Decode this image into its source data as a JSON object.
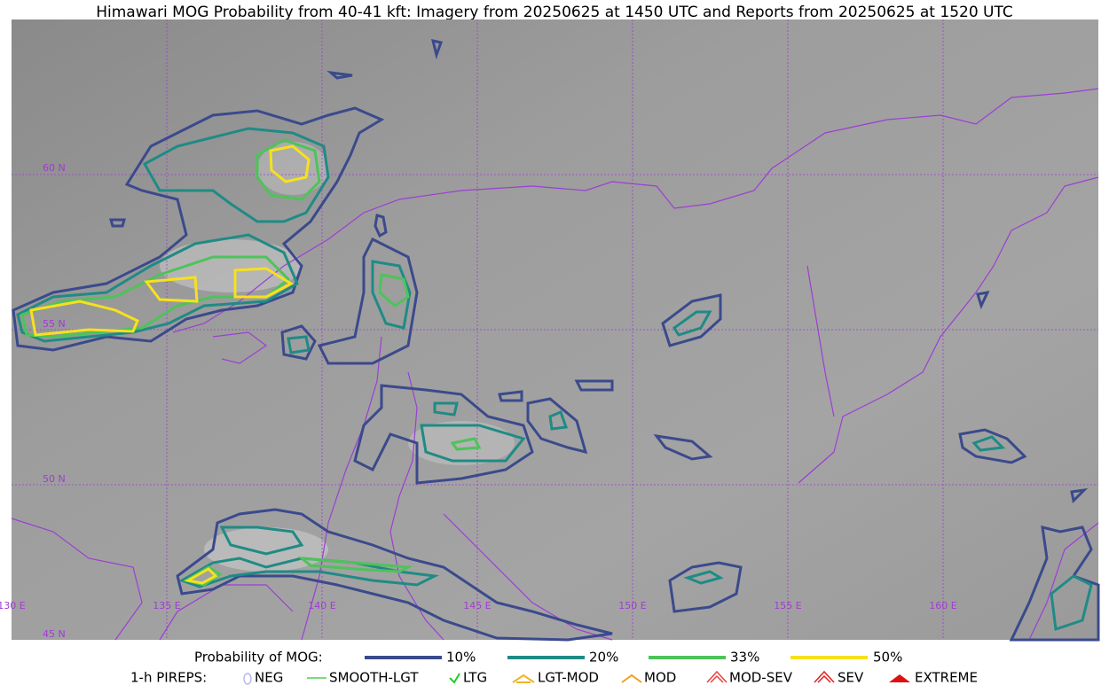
{
  "title": "Himawari MOG Probability from 40-41 kft: Imagery from 20250625 at 1450 UTC and Reports from 20250625 at 1520 UTC",
  "map": {
    "lat_labels": [
      "60 N",
      "55 N",
      "50 N",
      "45 N"
    ],
    "lon_labels": [
      "130 E",
      "135 E",
      "140 E",
      "145 E",
      "150 E",
      "155 E",
      "160 E"
    ]
  },
  "legend": {
    "probability": {
      "title": "Probability of MOG:",
      "items": [
        "10%",
        "20%",
        "33%",
        "50%"
      ]
    },
    "pireps": {
      "title": "1-h PIREPS:",
      "items": [
        "NEG",
        "SMOOTH-LGT",
        "LTG",
        "LGT-MOD",
        "MOD",
        "MOD-SEV",
        "SEV",
        "EXTREME"
      ]
    }
  }
}
